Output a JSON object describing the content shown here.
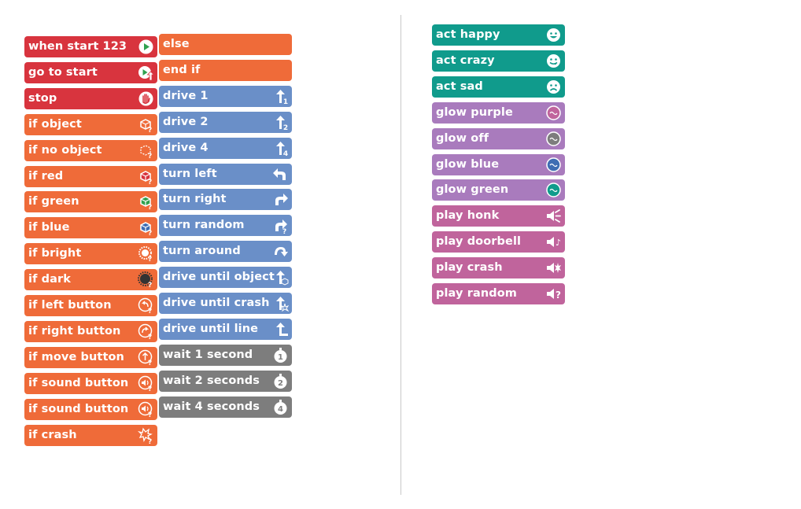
{
  "colors": {
    "red": "#d8343e",
    "orange": "#ef6b39",
    "blue": "#6a8fc8",
    "gray": "#7d7d7d",
    "teal": "#109b8c",
    "purple": "#a97bbd",
    "magenta": "#c0649c"
  },
  "column1": [
    {
      "label": "when start 123",
      "icon": "play-icon",
      "color": "red"
    },
    {
      "label": "go to start",
      "icon": "play-up-arrow-icon",
      "color": "red"
    },
    {
      "label": "stop",
      "icon": "hand-icon",
      "color": "red"
    },
    {
      "label": "if object",
      "icon": "cube-question-icon",
      "color": "orange"
    },
    {
      "label": "if no object",
      "icon": "dashed-cube-question-icon",
      "color": "orange"
    },
    {
      "label": "if red",
      "icon": "red-cube-question-icon",
      "color": "orange"
    },
    {
      "label": "if green",
      "icon": "green-cube-question-icon",
      "color": "orange"
    },
    {
      "label": "if blue",
      "icon": "blue-cube-question-icon",
      "color": "orange"
    },
    {
      "label": "if bright",
      "icon": "sun-question-icon",
      "color": "orange"
    },
    {
      "label": "if dark",
      "icon": "dark-sun-question-icon",
      "color": "orange"
    },
    {
      "label": "if left button",
      "icon": "left-button-question-icon",
      "color": "orange"
    },
    {
      "label": "if right button",
      "icon": "right-button-question-icon",
      "color": "orange"
    },
    {
      "label": "if move button",
      "icon": "move-button-question-icon",
      "color": "orange"
    },
    {
      "label": "if sound button",
      "icon": "sound-button-question-icon",
      "color": "orange"
    },
    {
      "label": "if sound button",
      "icon": "sound-button-question-icon",
      "color": "orange"
    },
    {
      "label": "if crash",
      "icon": "crash-question-icon",
      "color": "orange"
    }
  ],
  "column2": [
    {
      "label": "else",
      "icon": "",
      "color": "orange"
    },
    {
      "label": "end if",
      "icon": "",
      "color": "orange"
    },
    {
      "label": "drive 1",
      "icon": "arrow-up-1-icon",
      "color": "blue"
    },
    {
      "label": "drive 2",
      "icon": "arrow-up-2-icon",
      "color": "blue"
    },
    {
      "label": "drive 4",
      "icon": "arrow-up-4-icon",
      "color": "blue"
    },
    {
      "label": "turn left",
      "icon": "turn-left-icon",
      "color": "blue"
    },
    {
      "label": "turn right",
      "icon": "turn-right-icon",
      "color": "blue"
    },
    {
      "label": "turn random",
      "icon": "turn-random-icon",
      "color": "blue"
    },
    {
      "label": "turn around",
      "icon": "turn-around-icon",
      "color": "blue"
    },
    {
      "label": "drive until object",
      "icon": "arrow-up-cube-icon",
      "color": "blue"
    },
    {
      "label": "drive until crash",
      "icon": "arrow-up-crash-icon",
      "color": "blue"
    },
    {
      "label": "drive until line",
      "icon": "arrow-up-line-icon",
      "color": "blue"
    },
    {
      "label": "wait 1 second",
      "icon": "stopwatch-1-icon",
      "color": "gray"
    },
    {
      "label": "wait 2 seconds",
      "icon": "stopwatch-2-icon",
      "color": "gray"
    },
    {
      "label": "wait 4 seconds",
      "icon": "stopwatch-4-icon",
      "color": "gray"
    }
  ],
  "column3": [
    {
      "label": "act happy",
      "icon": "happy-face-icon",
      "color": "teal"
    },
    {
      "label": "act crazy",
      "icon": "crazy-face-icon",
      "color": "teal"
    },
    {
      "label": "act sad",
      "icon": "sad-face-icon",
      "color": "teal"
    },
    {
      "label": "glow purple",
      "icon": "glow-purple-icon",
      "color": "purple",
      "dot": "#c0649c"
    },
    {
      "label": "glow off",
      "icon": "glow-off-icon",
      "color": "purple",
      "dot": "#7d7d7d"
    },
    {
      "label": "glow blue",
      "icon": "glow-blue-icon",
      "color": "purple",
      "dot": "#3f6db3"
    },
    {
      "label": "glow green",
      "icon": "glow-green-icon",
      "color": "purple",
      "dot": "#109b8c"
    },
    {
      "label": "play honk",
      "icon": "speaker-honk-icon",
      "color": "magenta"
    },
    {
      "label": "play doorbell",
      "icon": "speaker-doorbell-icon",
      "color": "magenta"
    },
    {
      "label": "play crash",
      "icon": "speaker-crash-icon",
      "color": "magenta"
    },
    {
      "label": "play random",
      "icon": "speaker-random-icon",
      "color": "magenta"
    }
  ]
}
